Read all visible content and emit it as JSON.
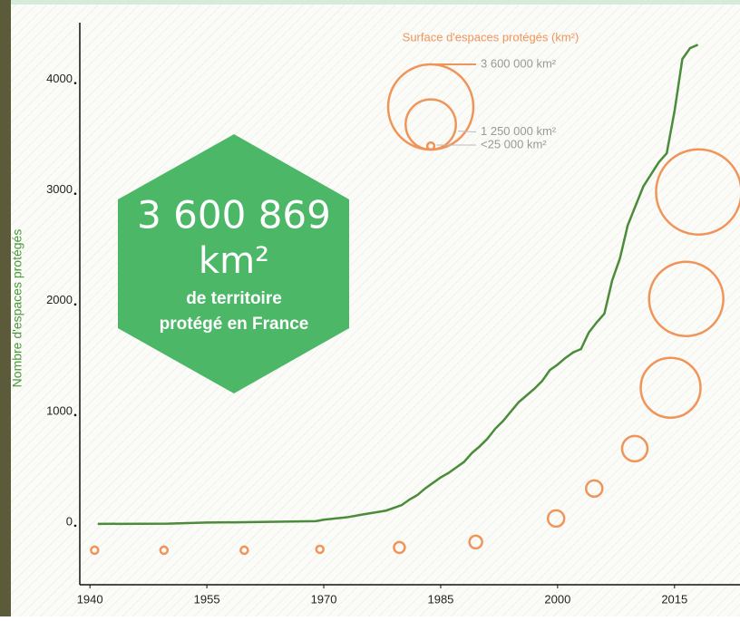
{
  "chart_data": {
    "type": "line",
    "y_label": "Nombre d'espaces protégés",
    "xlim": [
      1938.7,
      2023.4
    ],
    "ylim": [
      -550,
      4530
    ],
    "xticks": [
      1940,
      1955,
      1970,
      1985,
      2000,
      2015
    ],
    "yticks": [
      0,
      1000,
      2000,
      3000,
      4000
    ],
    "series": [
      {
        "name": "Nombre d'espaces protégés",
        "color": "#4a8c3a",
        "x": [
          1941,
          1950,
          1955,
          1960,
          1965,
          1969,
          1970,
          1973,
          1975,
          1978,
          1980,
          1981,
          1982,
          1983,
          1985,
          1986,
          1988,
          1989,
          1990,
          1991,
          1992,
          1993,
          1995,
          1997,
          1998,
          1999,
          2000,
          2001,
          2002,
          2003,
          2004,
          2005,
          2006,
          2007,
          2008,
          2009,
          2011,
          2013,
          2014,
          2015,
          2016,
          2017,
          2018
        ],
        "values": [
          0,
          2,
          12,
          15,
          20,
          25,
          38,
          60,
          85,
          120,
          170,
          220,
          260,
          320,
          420,
          460,
          560,
          640,
          700,
          770,
          860,
          930,
          1100,
          1220,
          1290,
          1390,
          1440,
          1500,
          1550,
          1580,
          1730,
          1820,
          1900,
          2200,
          2400,
          2700,
          3050,
          3270,
          3350,
          3730,
          4200,
          4300,
          4330
        ]
      }
    ],
    "bubbles": {
      "color": "#f0955a",
      "x": [
        1940.6,
        1949.5,
        1959.8,
        1969.5,
        1979.7,
        1989.5,
        1999.8,
        2004.7,
        2009.9,
        2014.5,
        2016.5,
        2018.1
      ],
      "values": [
        -238,
        -238,
        -238,
        -230,
        -213,
        -164,
        49,
        320,
        680,
        1230,
        2033,
        3000
      ],
      "sizes": [
        26000,
        26000,
        26000,
        26000,
        58500,
        80000,
        132000,
        132000,
        319000,
        1771000,
        2733000,
        3600869
      ]
    },
    "size_legend": {
      "title": "Surface d'espaces protégés (km²)",
      "items": [
        {
          "label": "3 600 000 km²",
          "value": 3600000
        },
        {
          "label": "1 250 000 km²",
          "value": 1250000
        },
        {
          "label": "<25 000 km²",
          "value": 25000
        }
      ]
    },
    "callout": {
      "number": "3 600 869",
      "unit": "km²",
      "line1": "de territoire",
      "line2": "protégé en France"
    }
  }
}
